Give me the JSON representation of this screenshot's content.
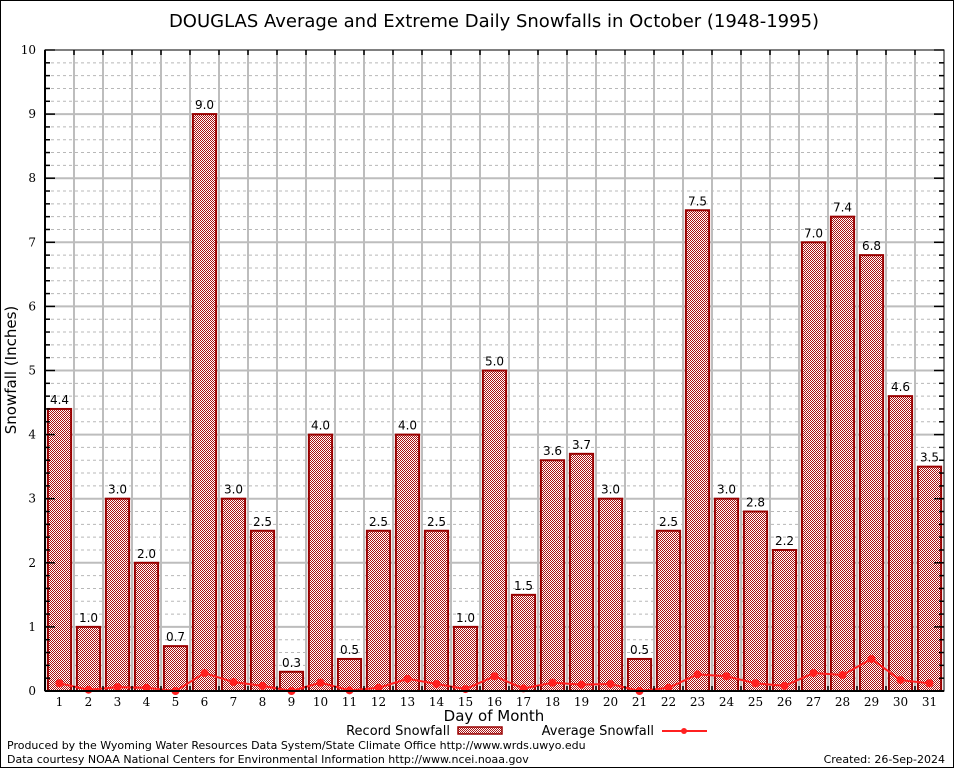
{
  "chart_data": {
    "type": "bar",
    "title": "DOUGLAS Average and Extreme Daily Snowfalls in October (1948-1995)",
    "xlabel": "Day of Month",
    "ylabel": "Snowfall (Inches)",
    "ylim": [
      0,
      10
    ],
    "yticks": [
      "0",
      "1",
      "2",
      "3",
      "4",
      "5",
      "6",
      "7",
      "8",
      "9",
      "10"
    ],
    "grid": true,
    "legend_position": "bottom-center",
    "categories": [
      "1",
      "2",
      "3",
      "4",
      "5",
      "6",
      "7",
      "8",
      "9",
      "10",
      "11",
      "12",
      "13",
      "14",
      "15",
      "16",
      "17",
      "18",
      "19",
      "20",
      "21",
      "22",
      "23",
      "24",
      "25",
      "26",
      "27",
      "28",
      "29",
      "30",
      "31"
    ],
    "series": [
      {
        "name": "Record Snowfall",
        "kind": "bar",
        "color": "#990000",
        "values": [
          4.4,
          1.0,
          3.0,
          2.0,
          0.7,
          9.0,
          3.0,
          2.5,
          0.3,
          4.0,
          0.5,
          2.5,
          4.0,
          2.5,
          1.0,
          5.0,
          1.5,
          3.6,
          3.7,
          3.0,
          0.5,
          2.5,
          7.5,
          3.0,
          2.8,
          2.2,
          7.0,
          7.4,
          6.8,
          4.6,
          3.5
        ],
        "labels": [
          "4.4",
          "1.0",
          "3.0",
          "2.0",
          "0.7",
          "9.0",
          "3.0",
          "2.5",
          "0.3",
          "4.0",
          "0.5",
          "2.5",
          "4.0",
          "2.5",
          "1.0",
          "5.0",
          "1.5",
          "3.6",
          "3.7",
          "3.0",
          "0.5",
          "2.5",
          "7.5",
          "3.0",
          "2.8",
          "2.2",
          "7.0",
          "7.4",
          "6.8",
          "4.6",
          "3.5"
        ]
      },
      {
        "name": "Average Snowfall",
        "kind": "line",
        "color": "#ff2020",
        "values": [
          0.12,
          0.02,
          0.06,
          0.05,
          0.0,
          0.28,
          0.14,
          0.08,
          0.0,
          0.13,
          0.01,
          0.05,
          0.19,
          0.11,
          0.03,
          0.23,
          0.04,
          0.13,
          0.1,
          0.11,
          0.0,
          0.05,
          0.26,
          0.23,
          0.12,
          0.08,
          0.28,
          0.25,
          0.5,
          0.17,
          0.12
        ]
      }
    ]
  },
  "footer": {
    "line1": "Produced by the Wyoming Water Resources Data System/State Climate Office http://www.wrds.uwyo.edu",
    "line2": "Data courtesy NOAA National Centers for Environmental Information http://www.ncei.noaa.gov",
    "created": "Created: 26-Sep-2024"
  }
}
